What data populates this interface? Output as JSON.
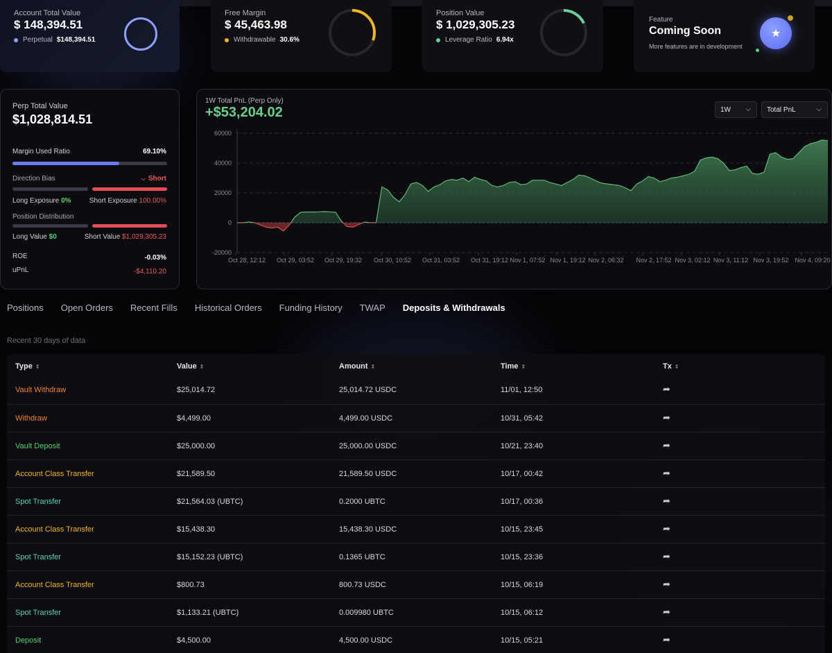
{
  "cards": {
    "account": {
      "label": "Account Total Value",
      "value": "$ 148,394.51",
      "sub_label": "Perpetual",
      "sub_value": "$148,394.51",
      "dot_color": "#8ea0ff",
      "ring_color": "#8ea0ff",
      "ring_fraction": 1.0
    },
    "margin": {
      "label": "Free Margin",
      "value": "$ 45,463.98",
      "sub_label": "Withdrawable",
      "sub_value": "30.6%",
      "dot_color": "#f0b429",
      "ring_color": "#f0b429",
      "ring_fraction": 0.306
    },
    "position": {
      "label": "Position Value",
      "value": "$ 1,029,305.23",
      "sub_label": "Leverage Ratio",
      "sub_value": "6.94x",
      "dot_color": "#6ccf9a",
      "ring_color": "#6ccf9a",
      "ring_fraction": 0.18
    },
    "feature": {
      "label": "Feature",
      "title": "Coming Soon",
      "desc": "More features are in development",
      "badge_icon": "★"
    }
  },
  "perp": {
    "label": "Perp Total Value",
    "value": "$1,028,814.51",
    "margin_label": "Margin Used Ratio",
    "margin_value": "69.10%",
    "margin_fraction": 0.691,
    "bias_label": "Direction Bias",
    "bias_value": "Short",
    "long_exposure_label": "Long Exposure",
    "long_exposure_value": "0%",
    "short_exposure_label": "Short Exposure",
    "short_exposure_value": "100.00%",
    "distribution_label": "Position Distribution",
    "long_value_label": "Long Value",
    "long_value": "$0",
    "short_value_label": "Short Value",
    "short_value": "$1,029,305.23",
    "roe_label": "ROE",
    "roe_value": "-0.03%",
    "upnl_label": "uPnL",
    "upnl_value": "-$4,110.20"
  },
  "chart_header": {
    "subtitle": "1W Total PnL (Perp Only)",
    "value": "+$53,204.02",
    "period_select": "1W",
    "metric_select": "Total PnL"
  },
  "chart_data": {
    "type": "area",
    "title": "1W Total PnL (Perp Only)",
    "ylim": [
      -20000,
      60000
    ],
    "y_ticks": [
      "60000",
      "40000",
      "20000",
      "0",
      "-20000"
    ],
    "y_tick_values": [
      60000,
      40000,
      20000,
      0,
      -20000
    ],
    "x_ticks": [
      "Oct 28, 12:12",
      "Oct 29, 03:52",
      "Oct 29, 19:32",
      "Oct 30, 10:52",
      "Oct 31, 03:52",
      "Oct 31, 19:12",
      "Nov 1, 07:52",
      "Nov 1, 19:12",
      "Nov 2, 06:32",
      "Nov 2, 17:52",
      "Nov 3, 02:12",
      "Nov 3, 11:12",
      "Nov 3, 19:52",
      "Nov 4, 09:20"
    ],
    "grid": true,
    "colors": {
      "positive": "#5fb878",
      "negative": "#d94a4a"
    },
    "values": [
      0,
      0,
      500,
      0,
      -1500,
      -3000,
      -3500,
      -3000,
      -5500,
      -1500,
      4000,
      7000,
      7200,
      7200,
      7300,
      7500,
      7300,
      7000,
      1000,
      -2500,
      -3000,
      -1200,
      400,
      0,
      0,
      24000,
      22000,
      17000,
      14000,
      19000,
      26000,
      27000,
      25000,
      21000,
      24000,
      25500,
      28000,
      29000,
      28500,
      30000,
      27500,
      30500,
      29000,
      28000,
      25000,
      24000,
      25000,
      27000,
      27500,
      25500,
      26000,
      28500,
      28500,
      28500,
      27000,
      26000,
      25000,
      27000,
      29000,
      32000,
      31500,
      30000,
      28000,
      26500,
      26000,
      25500,
      25000,
      23500,
      21500,
      26000,
      28000,
      31000,
      30000,
      27500,
      28500,
      30000,
      30500,
      31500,
      32500,
      34500,
      42000,
      43500,
      44000,
      43000,
      40000,
      35000,
      35500,
      37000,
      38000,
      33000,
      32500,
      34000,
      46000,
      47000,
      44000,
      42500,
      43000,
      47000,
      51000,
      53000,
      54000,
      55500,
      55000
    ]
  },
  "tabs": [
    "Positions",
    "Open Orders",
    "Recent Fills",
    "Historical Orders",
    "Funding History",
    "TWAP",
    "Deposits & Withdrawals"
  ],
  "active_tab": "Deposits & Withdrawals",
  "recent_note": "Recent 30 days of data",
  "table": {
    "headers": [
      "Type",
      "Value",
      "Amount",
      "Time",
      "Tx"
    ],
    "sort_icon": "⇕",
    "tx_icon": "➦",
    "rows": [
      {
        "type": "Vault Withdraw",
        "type_color": "orange",
        "value": "$25,014.72",
        "amount": "25,014.72 USDC",
        "time": "11/01, 12:50"
      },
      {
        "type": "Withdraw",
        "type_color": "orange",
        "value": "$4,499.00",
        "amount": "4,499.00 USDC",
        "time": "10/31, 05:42"
      },
      {
        "type": "Vault Deposit",
        "type_color": "green",
        "value": "$25,000.00",
        "amount": "25,000.00 USDC",
        "time": "10/21, 23:40"
      },
      {
        "type": "Account Class Transfer",
        "type_color": "yellow",
        "value": "$21,589.50",
        "amount": "21,589.50 USDC",
        "time": "10/17, 00:42"
      },
      {
        "type": "Spot Transfer",
        "type_color": "teal",
        "value": "$21,564.03 (UBTC)",
        "amount": "0.2000 UBTC",
        "time": "10/17, 00:36"
      },
      {
        "type": "Account Class Transfer",
        "type_color": "yellow",
        "value": "$15,438.30",
        "amount": "15,438.30 USDC",
        "time": "10/15, 23:45"
      },
      {
        "type": "Spot Transfer",
        "type_color": "teal",
        "value": "$15,152.23 (UBTC)",
        "amount": "0.1365 UBTC",
        "time": "10/15, 23:36"
      },
      {
        "type": "Account Class Transfer",
        "type_color": "yellow",
        "value": "$800.73",
        "amount": "800.73 USDC",
        "time": "10/15, 06:19"
      },
      {
        "type": "Spot Transfer",
        "type_color": "teal",
        "value": "$1,133.21 (UBTC)",
        "amount": "0.009980 UBTC",
        "time": "10/15, 06:12"
      },
      {
        "type": "Deposit",
        "type_color": "green",
        "value": "$4,500.00",
        "amount": "4,500.00 USDC",
        "time": "10/15, 05:21"
      }
    ]
  }
}
